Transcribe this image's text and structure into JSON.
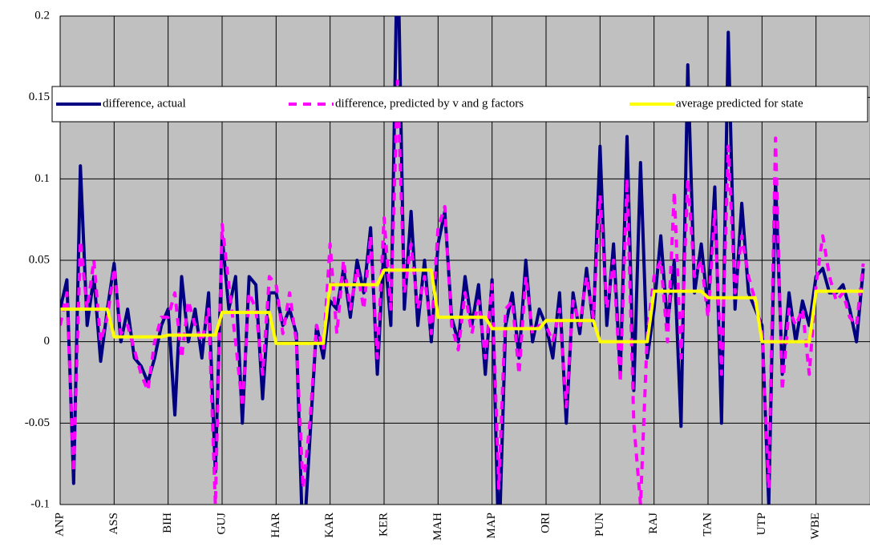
{
  "chart_data": {
    "type": "line",
    "categories": [
      "ANP",
      null,
      null,
      null,
      null,
      null,
      null,
      null,
      "ASS",
      null,
      null,
      null,
      null,
      null,
      null,
      null,
      "BIH",
      null,
      null,
      null,
      null,
      null,
      null,
      null,
      "GUJ",
      null,
      null,
      null,
      null,
      null,
      null,
      null,
      "HAR",
      null,
      null,
      null,
      null,
      null,
      null,
      null,
      "KAR",
      null,
      null,
      null,
      null,
      null,
      null,
      null,
      "KER",
      null,
      null,
      null,
      null,
      null,
      null,
      null,
      "MAH",
      null,
      null,
      null,
      null,
      null,
      null,
      null,
      "MAP",
      null,
      null,
      null,
      null,
      null,
      null,
      null,
      "ORI",
      null,
      null,
      null,
      null,
      null,
      null,
      null,
      "PUN",
      null,
      null,
      null,
      null,
      null,
      null,
      null,
      "RAJ",
      null,
      null,
      null,
      null,
      null,
      null,
      null,
      "TAN",
      null,
      null,
      null,
      null,
      null,
      null,
      null,
      "UTP",
      null,
      null,
      null,
      null,
      null,
      null,
      null,
      "WBE",
      null,
      null,
      null,
      null,
      null,
      null,
      null
    ],
    "series": [
      {
        "name": "difference, actual",
        "color": "#000080",
        "dashed": false,
        "values": [
          0.02,
          0.038,
          -0.087,
          0.108,
          0.01,
          0.04,
          -0.012,
          0.02,
          0.048,
          0.0,
          0.02,
          -0.01,
          -0.015,
          -0.025,
          -0.01,
          0.01,
          0.02,
          -0.045,
          0.04,
          0.0,
          0.02,
          -0.01,
          0.03,
          -0.08,
          0.065,
          0.02,
          0.04,
          -0.05,
          0.04,
          0.035,
          -0.035,
          0.03,
          0.03,
          0.01,
          0.02,
          0.005,
          -0.13,
          -0.06,
          0.01,
          -0.01,
          0.025,
          0.02,
          0.045,
          0.015,
          0.05,
          0.03,
          0.07,
          -0.02,
          0.06,
          0.01,
          0.25,
          0.02,
          0.08,
          0.01,
          0.05,
          0.0,
          0.06,
          0.08,
          0.015,
          0.0,
          0.04,
          0.01,
          0.035,
          -0.02,
          0.038,
          -0.13,
          0.01,
          0.03,
          -0.01,
          0.05,
          0.0,
          0.02,
          0.01,
          -0.01,
          0.03,
          -0.05,
          0.03,
          0.005,
          0.045,
          0.01,
          0.12,
          0.01,
          0.06,
          -0.02,
          0.126,
          -0.03,
          0.11,
          -0.01,
          0.02,
          0.065,
          0.01,
          0.05,
          -0.052,
          0.17,
          0.03,
          0.06,
          0.02,
          0.095,
          -0.05,
          0.19,
          0.02,
          0.085,
          0.03,
          0.02,
          0.01,
          -0.1,
          0.1,
          -0.02,
          0.03,
          0.0,
          0.025,
          0.01,
          0.04,
          0.045,
          0.03,
          0.03,
          0.035,
          0.02,
          0.0,
          0.045
        ]
      },
      {
        "name": "difference, predicted by v and g factors",
        "color": "#ff00ff",
        "dashed": true,
        "values": [
          0.01,
          0.03,
          -0.08,
          0.062,
          0.02,
          0.05,
          0.0,
          0.015,
          0.045,
          0.005,
          0.01,
          -0.005,
          -0.02,
          -0.03,
          0.0,
          0.015,
          0.015,
          0.03,
          -0.01,
          0.025,
          0.01,
          0.0,
          0.02,
          -0.1,
          0.072,
          0.035,
          0.0,
          -0.04,
          0.03,
          0.02,
          -0.02,
          0.04,
          0.035,
          0.005,
          0.03,
          0.0,
          -0.09,
          -0.05,
          0.01,
          -0.005,
          0.06,
          0.005,
          0.05,
          0.02,
          0.045,
          0.02,
          0.065,
          -0.01,
          0.076,
          0.02,
          0.16,
          0.03,
          0.06,
          0.02,
          0.04,
          0.005,
          0.07,
          0.083,
          0.01,
          -0.005,
          0.03,
          0.005,
          0.025,
          -0.01,
          0.035,
          -0.09,
          0.02,
          0.025,
          -0.02,
          0.04,
          0.005,
          0.01,
          0.01,
          0.0,
          0.02,
          -0.04,
          0.025,
          0.01,
          0.04,
          0.015,
          0.09,
          0.02,
          0.05,
          -0.025,
          0.1,
          -0.05,
          -0.1,
          0.005,
          0.04,
          0.05,
          0.0,
          0.092,
          -0.01,
          0.1,
          0.04,
          0.05,
          0.015,
          0.08,
          -0.02,
          0.12,
          0.03,
          0.065,
          0.04,
          0.025,
          0.005,
          -0.09,
          0.125,
          -0.03,
          0.02,
          0.01,
          0.02,
          -0.02,
          0.035,
          0.065,
          0.04,
          0.025,
          0.03,
          0.015,
          0.01,
          0.048
        ]
      },
      {
        "name": "average predicted for state",
        "color": "#ffff00",
        "dashed": false,
        "values": [
          0.02,
          0.02,
          0.02,
          0.02,
          0.02,
          0.02,
          0.02,
          0.02,
          0.003,
          0.003,
          0.003,
          0.003,
          0.003,
          0.003,
          0.003,
          0.003,
          0.004,
          0.004,
          0.004,
          0.004,
          0.004,
          0.004,
          0.004,
          0.004,
          0.018,
          0.018,
          0.018,
          0.018,
          0.018,
          0.018,
          0.018,
          0.018,
          -0.001,
          -0.001,
          -0.001,
          -0.001,
          -0.001,
          -0.001,
          -0.001,
          -0.001,
          0.035,
          0.035,
          0.035,
          0.035,
          0.035,
          0.035,
          0.035,
          0.035,
          0.044,
          0.044,
          0.044,
          0.044,
          0.044,
          0.044,
          0.044,
          0.044,
          0.015,
          0.015,
          0.015,
          0.015,
          0.015,
          0.015,
          0.015,
          0.015,
          0.008,
          0.008,
          0.008,
          0.008,
          0.008,
          0.008,
          0.008,
          0.008,
          0.013,
          0.013,
          0.013,
          0.013,
          0.013,
          0.013,
          0.013,
          0.013,
          0.0,
          0.0,
          0.0,
          0.0,
          0.0,
          0.0,
          0.0,
          0.0,
          0.031,
          0.031,
          0.031,
          0.031,
          0.031,
          0.031,
          0.031,
          0.031,
          0.027,
          0.027,
          0.027,
          0.027,
          0.027,
          0.027,
          0.027,
          0.027,
          0.0,
          0.0,
          0.0,
          0.0,
          0.0,
          0.0,
          0.0,
          0.0,
          0.031,
          0.031,
          0.031,
          0.031,
          0.031,
          0.031,
          0.031,
          0.031
        ]
      }
    ],
    "ylim": [
      -0.1,
      0.2
    ],
    "yticks": [
      -0.1,
      -0.05,
      0,
      0.05,
      0.1,
      0.15,
      0.2
    ],
    "grid": true,
    "legend": "top",
    "background": "#c0c0c0"
  }
}
